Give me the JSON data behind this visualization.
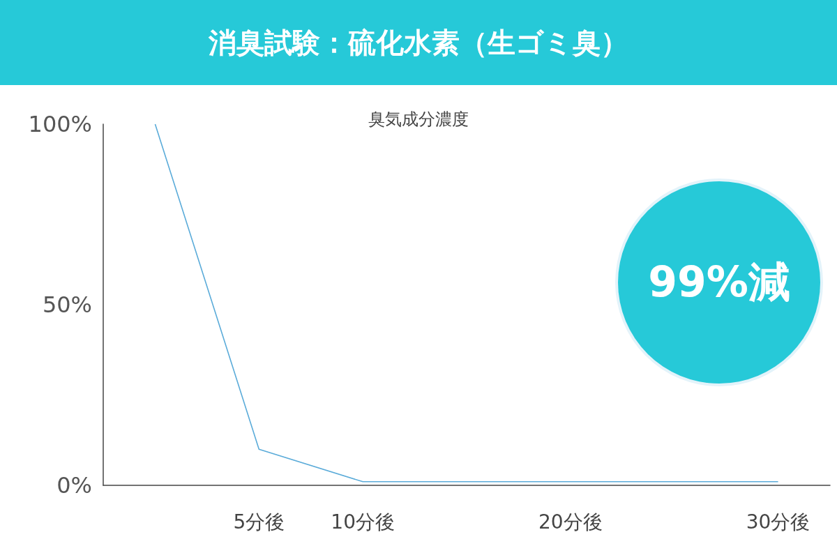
{
  "chart_data": {
    "type": "line",
    "title": "消臭試験：硫化水素（生ゴミ臭）",
    "ylabel": "臭気成分濃度",
    "x": [
      0,
      5,
      10,
      20,
      30
    ],
    "series": [
      {
        "color": "#5aabd9",
        "values": [
          100,
          10,
          1,
          1,
          1
        ]
      }
    ],
    "xlim": [
      -2.5,
      32.5
    ],
    "xticks": [
      {
        "value": 5,
        "label": "5分後"
      },
      {
        "value": 10,
        "label": "10分後"
      },
      {
        "value": 20,
        "label": "20分後"
      },
      {
        "value": 30,
        "label": "30分後"
      }
    ],
    "ylim": [
      0,
      100
    ],
    "yticks": [
      {
        "value": 0,
        "label": "0%"
      },
      {
        "value": 50,
        "label": "50%"
      },
      {
        "value": 100,
        "label": "100%"
      }
    ],
    "annotations": [
      "99%減"
    ],
    "marker": "none",
    "grid": false
  }
}
